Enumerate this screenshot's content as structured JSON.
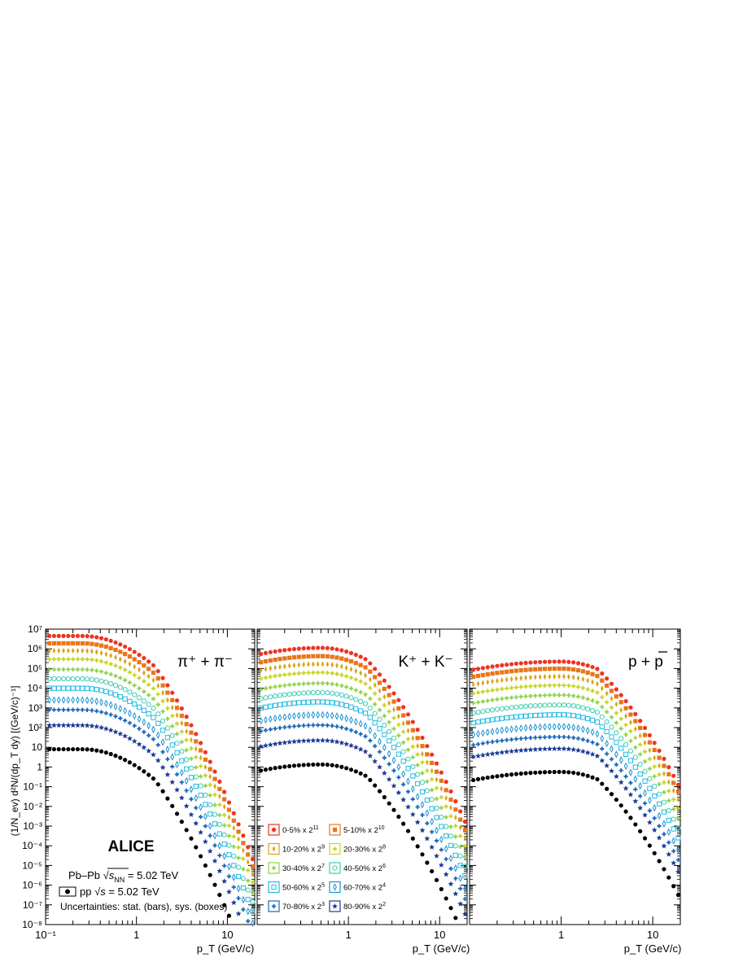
{
  "chart_data": {
    "type": "scatter",
    "scale": "log-log",
    "experiment": "ALICE",
    "system_label": {
      "pbpb_prefix": "Pb–Pb ",
      "pbpb_sqrt": "s",
      "pbpb_sub": "NN",
      "pbpb_energy": " = 5.02 TeV",
      "pp_prefix": "pp ",
      "pp_sqrt": "s",
      "pp_energy": " = 5.02 TeV"
    },
    "uncertainties_note": "Uncertainties: stat. (bars), sys. (boxes)",
    "ylabel": "(1/N_ev) d²N/(dp_T dy) [(GeV/c)⁻¹]",
    "xlabel": "p_T (GeV/c)",
    "xlim": [
      0.1,
      20
    ],
    "ylim": [
      1e-08,
      10000000.0
    ],
    "x_ticklabels": [
      "10⁻¹",
      "1",
      "10"
    ],
    "y_ticklabels": [
      "10⁻⁸",
      "10⁻⁷",
      "10⁻⁶",
      "10⁻⁵",
      "10⁻⁴",
      "10⁻³",
      "10⁻²",
      "10⁻¹",
      "1",
      "10",
      "10²",
      "10³",
      "10⁴",
      "10⁵",
      "10⁶",
      "10⁷"
    ],
    "centrality_classes": [
      {
        "label": "0-5% x 2",
        "power": "11",
        "color": "#ee3322",
        "marker": "circle"
      },
      {
        "label": "5-10% x 2",
        "power": "10",
        "color": "#e8761a",
        "marker": "square"
      },
      {
        "label": "10-20% x 2",
        "power": "9",
        "color": "#d9a418",
        "marker": "diamond"
      },
      {
        "label": "20-30% x 2",
        "power": "8",
        "color": "#c6d420",
        "marker": "cross"
      },
      {
        "label": "30-40% x 2",
        "power": "7",
        "color": "#8cd34a",
        "marker": "cross"
      },
      {
        "label": "40-50% x 2",
        "power": "6",
        "color": "#3ecdb0",
        "marker": "open-circle"
      },
      {
        "label": "50-60% x 2",
        "power": "5",
        "color": "#21b9e2",
        "marker": "open-square"
      },
      {
        "label": "60-70% x 2",
        "power": "4",
        "color": "#1a93d3",
        "marker": "open-diamond"
      },
      {
        "label": "70-80% x 2",
        "power": "3",
        "color": "#1867b8",
        "marker": "cross"
      },
      {
        "label": "80-90% x 2",
        "power": "2",
        "color": "#1c3a96",
        "marker": "star"
      }
    ],
    "pp_series": {
      "label": "pp",
      "color": "#000000",
      "marker": "circle"
    },
    "panels": [
      {
        "title_main": "π⁺ + π⁻",
        "peak_pt": 0.25,
        "rise_start": 0,
        "series": [
          {
            "class": "0-5%",
            "low_pt_yield": 4500000.0
          },
          {
            "class": "5-10%",
            "low_pt_yield": 1900000.0
          },
          {
            "class": "10-20%",
            "low_pt_yield": 800000.0
          },
          {
            "class": "20-30%",
            "low_pt_yield": 300000.0
          },
          {
            "class": "30-40%",
            "low_pt_yield": 90000.0
          },
          {
            "class": "40-50%",
            "low_pt_yield": 30000.0
          },
          {
            "class": "50-60%",
            "low_pt_yield": 10000.0
          },
          {
            "class": "60-70%",
            "low_pt_yield": 2500.0
          },
          {
            "class": "70-80%",
            "low_pt_yield": 800.0
          },
          {
            "class": "80-90%",
            "low_pt_yield": 130.0
          },
          {
            "class": "pp",
            "low_pt_yield": 8.0
          }
        ]
      },
      {
        "title_main": "K⁺ + K⁻",
        "peak_pt": 0.5,
        "rise_start": 0.35,
        "series": [
          {
            "class": "0-5%",
            "low_pt_yield": 500000.0
          },
          {
            "class": "5-10%",
            "low_pt_yield": 190000.0
          },
          {
            "class": "10-20%",
            "low_pt_yield": 75000.0
          },
          {
            "class": "20-30%",
            "low_pt_yield": 28000.0
          },
          {
            "class": "30-40%",
            "low_pt_yield": 8000.0
          },
          {
            "class": "40-50%",
            "low_pt_yield": 2700.0
          },
          {
            "class": "50-60%",
            "low_pt_yield": 900.0
          },
          {
            "class": "60-70%",
            "low_pt_yield": 200.0
          },
          {
            "class": "70-80%",
            "low_pt_yield": 60.0
          },
          {
            "class": "80-90%",
            "low_pt_yield": 10.0
          },
          {
            "class": "pp",
            "low_pt_yield": 0.6
          }
        ]
      },
      {
        "title_main": "p + ",
        "title_bar": "p",
        "peak_pt": 1.0,
        "rise_start": 0.45,
        "series": [
          {
            "class": "0-5%",
            "low_pt_yield": 80000.0
          },
          {
            "class": "5-10%",
            "low_pt_yield": 35000.0
          },
          {
            "class": "10-20%",
            "low_pt_yield": 14000.0
          },
          {
            "class": "20-30%",
            "low_pt_yield": 5000.0
          },
          {
            "class": "30-40%",
            "low_pt_yield": 1600.0
          },
          {
            "class": "40-50%",
            "low_pt_yield": 500.0
          },
          {
            "class": "50-60%",
            "low_pt_yield": 160.0
          },
          {
            "class": "60-70%",
            "low_pt_yield": 40.0
          },
          {
            "class": "70-80%",
            "low_pt_yield": 12.0
          },
          {
            "class": "80-90%",
            "low_pt_yield": 3.0
          },
          {
            "class": "pp",
            "low_pt_yield": 0.2
          }
        ]
      }
    ]
  }
}
